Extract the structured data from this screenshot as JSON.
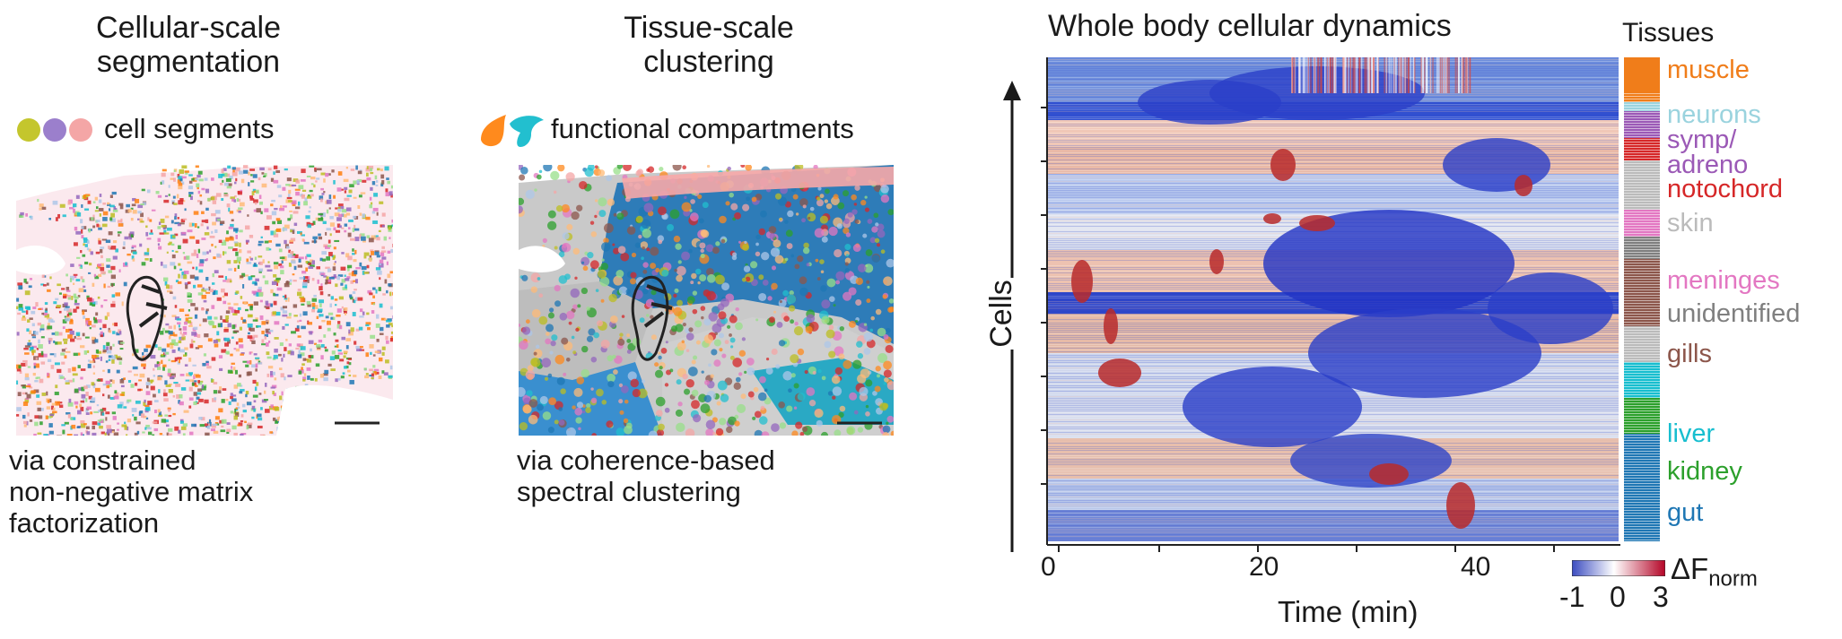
{
  "panel_a": {
    "title_line1": "Cellular-scale",
    "title_line2": "segmentation",
    "legend": "cell segments",
    "legend_colors": [
      "#c4c62d",
      "#9b7fcc",
      "#f4a6a6"
    ],
    "caption_lines": [
      "via constrained",
      "non-negative matrix",
      "factorization"
    ]
  },
  "panel_b": {
    "title_line1": "Tissue-scale",
    "title_line2": "clustering",
    "legend": "functional compartments",
    "legend_colors": [
      "#ff8a1d",
      "#22bfcf"
    ],
    "caption_lines": [
      "via coherence-based",
      "spectral clustering"
    ]
  },
  "panel_c": {
    "title": "Whole body cellular dynamics",
    "ylabel": "Cells",
    "xlabel": "Time (min)",
    "x_ticks": [
      "0",
      "20",
      "40"
    ],
    "tissues_header": "Tissues",
    "tissues": [
      {
        "label": "muscle",
        "color": "#f07d1a"
      },
      {
        "label": "neurons",
        "color": "#9ad3de"
      },
      {
        "label": "symp/",
        "color": "#9b59b6"
      },
      {
        "label": "adreno",
        "color": "#9b59b6"
      },
      {
        "label": "notochord",
        "color": "#d62728"
      },
      {
        "label": "skin",
        "color": "#bbbbbb"
      },
      {
        "label": "meninges",
        "color": "#e377c2"
      },
      {
        "label": "unidentified",
        "color": "#7f7f7f"
      },
      {
        "label": "gills",
        "color": "#8c564b"
      },
      {
        "label": "liver",
        "color": "#17becf"
      },
      {
        "label": "kidney",
        "color": "#2ca02c"
      },
      {
        "label": "gut",
        "color": "#1f77b4"
      }
    ],
    "colorbar": {
      "label_main": "ΔF",
      "label_sub": "norm",
      "ticks": [
        "-1",
        "0",
        "3"
      ],
      "colors": [
        "#3b4cc0",
        "#ffffff",
        "#b40426"
      ]
    }
  }
}
